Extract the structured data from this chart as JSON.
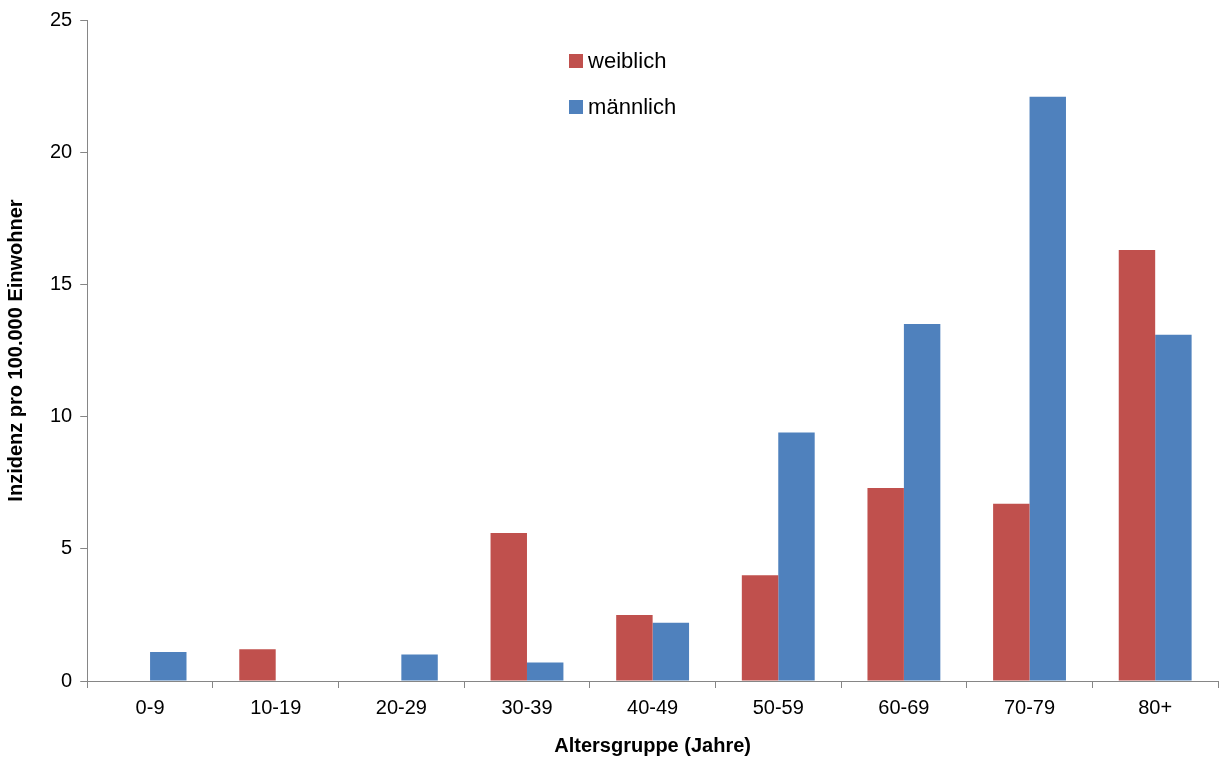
{
  "chart_data": {
    "type": "bar",
    "xlabel": "Altersgruppe (Jahre)",
    "ylabel": "Inzidenz pro 100.000 Einwohner",
    "categories": [
      "0-9",
      "10-19",
      "20-29",
      "30-39",
      "40-49",
      "50-59",
      "60-69",
      "70-79",
      "80+"
    ],
    "series": [
      {
        "name": "weiblich",
        "color": "#c0504d",
        "values": [
          0,
          1.2,
          0,
          5.6,
          2.5,
          4.0,
          7.3,
          6.7,
          16.3
        ]
      },
      {
        "name": "männlich",
        "color": "#4f81bd",
        "values": [
          1.1,
          0,
          1.0,
          0.7,
          2.2,
          9.4,
          13.5,
          22.1,
          13.1
        ]
      }
    ],
    "ylim": [
      0,
      25
    ],
    "yticks": [
      0,
      5,
      10,
      15,
      20,
      25
    ],
    "grid": false,
    "legend": "top"
  }
}
